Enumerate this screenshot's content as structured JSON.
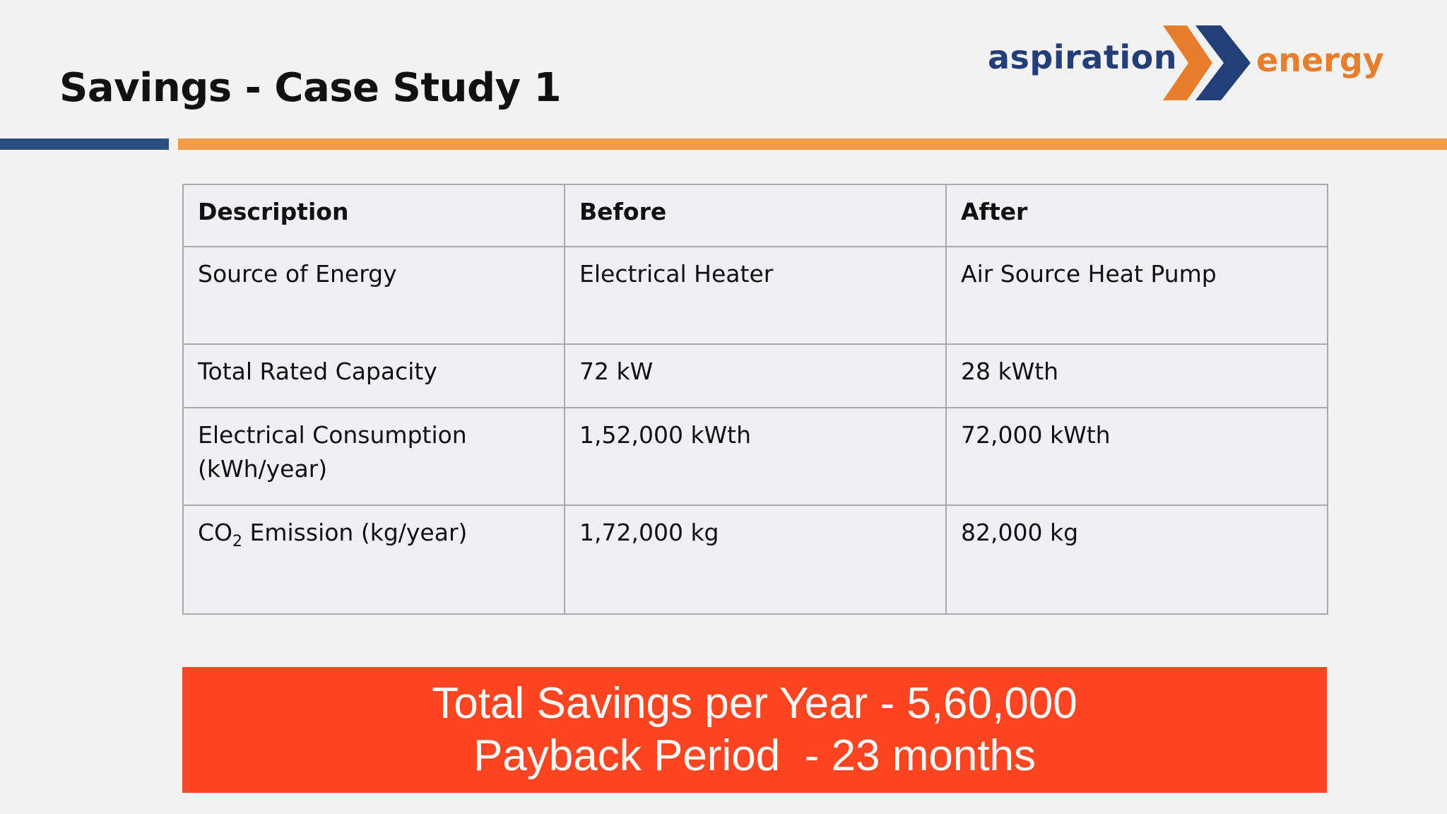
{
  "slide": {
    "title": "Savings - Case Study 1"
  },
  "logo": {
    "word_left": "aspiration",
    "word_right": "energy",
    "mark_icon": "double-chevron-right-icon",
    "colors": {
      "navy": "#243f78",
      "orange": "#e87d2b"
    }
  },
  "accent_colors": {
    "blue_rule": "#2a4e7f",
    "orange_rule": "#f39a46",
    "banner": "#fe4521"
  },
  "table": {
    "headers": [
      "Description",
      "Before",
      "After"
    ],
    "rows": [
      [
        "Source of Energy",
        "Electrical Heater",
        "Air Source Heat Pump"
      ],
      [
        "Total Rated Capacity",
        "72 kW",
        "28 kWth"
      ],
      [
        "Electrical Consumption (kWh/year)",
        "1,52,000 kWth",
        "72,000 kWth"
      ],
      [
        {
          "prefix": "CO",
          "sub": "2",
          "suffix": " Emission (kg/year)"
        },
        "1,72,000 kg",
        "82,000 kg"
      ]
    ]
  },
  "summary": {
    "line1": "Total Savings per Year - 5,60,000",
    "line2": "Payback Period  - 23 months"
  }
}
